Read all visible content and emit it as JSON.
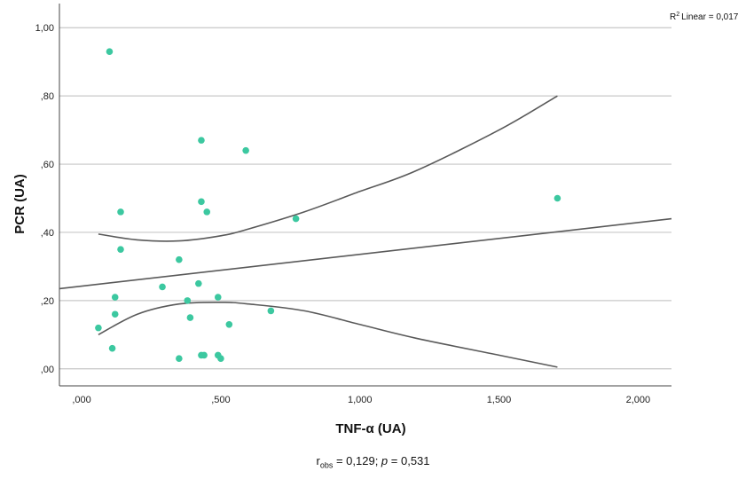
{
  "chart_data": {
    "type": "scatter",
    "xlabel": "TNF-α (UA)",
    "ylabel": "PCR (UA)",
    "xlim": [
      -0.08,
      2.12
    ],
    "ylim": [
      -0.05,
      1.05
    ],
    "x_ticks": [
      0,
      0.5,
      1.0,
      1.5,
      2.0
    ],
    "x_tick_labels": [
      ",000",
      ",500",
      "1,000",
      "1,500",
      "2,000"
    ],
    "y_ticks": [
      0,
      0.2,
      0.4,
      0.6,
      0.8,
      1.0
    ],
    "y_tick_labels": [
      ",00",
      ",20",
      ",40",
      ",60",
      ",80",
      "1,00"
    ],
    "grid": "horizontal",
    "points": [
      {
        "x": 0.1,
        "y": 0.93
      },
      {
        "x": 0.43,
        "y": 0.67
      },
      {
        "x": 0.59,
        "y": 0.64
      },
      {
        "x": 1.71,
        "y": 0.5
      },
      {
        "x": 0.43,
        "y": 0.49
      },
      {
        "x": 0.14,
        "y": 0.46
      },
      {
        "x": 0.45,
        "y": 0.46
      },
      {
        "x": 0.77,
        "y": 0.44
      },
      {
        "x": 0.14,
        "y": 0.35
      },
      {
        "x": 0.35,
        "y": 0.32
      },
      {
        "x": 0.29,
        "y": 0.24
      },
      {
        "x": 0.42,
        "y": 0.25
      },
      {
        "x": 0.12,
        "y": 0.21
      },
      {
        "x": 0.49,
        "y": 0.21
      },
      {
        "x": 0.38,
        "y": 0.2
      },
      {
        "x": 0.68,
        "y": 0.17
      },
      {
        "x": 0.12,
        "y": 0.16
      },
      {
        "x": 0.39,
        "y": 0.15
      },
      {
        "x": 0.53,
        "y": 0.13
      },
      {
        "x": 0.06,
        "y": 0.12
      },
      {
        "x": 0.11,
        "y": 0.06
      },
      {
        "x": 0.43,
        "y": 0.04
      },
      {
        "x": 0.44,
        "y": 0.04
      },
      {
        "x": 0.49,
        "y": 0.04
      },
      {
        "x": 0.35,
        "y": 0.03
      },
      {
        "x": 0.5,
        "y": 0.03
      }
    ],
    "fit_line": {
      "x": [
        -0.08,
        2.12
      ],
      "y": [
        0.235,
        0.44
      ]
    },
    "ci_upper": {
      "x": [
        0.06,
        0.2,
        0.35,
        0.5,
        0.6,
        0.8,
        1.0,
        1.2,
        1.5,
        1.71
      ],
      "y": [
        0.395,
        0.378,
        0.375,
        0.39,
        0.41,
        0.46,
        0.52,
        0.58,
        0.7,
        0.8
      ]
    },
    "ci_lower": {
      "x": [
        0.06,
        0.2,
        0.35,
        0.5,
        0.6,
        0.8,
        1.0,
        1.2,
        1.5,
        1.71
      ],
      "y": [
        0.1,
        0.16,
        0.19,
        0.195,
        0.19,
        0.17,
        0.13,
        0.09,
        0.04,
        0.005
      ]
    },
    "r2_label": "Linear = 0,017",
    "r2_sup": "2",
    "r2_prefix": "R",
    "colors": {
      "points": "#3cc8a0",
      "lines": "#595959",
      "grid": "#c8c8c8",
      "axis": "#444444"
    }
  },
  "footnote": {
    "r_symbol": "r",
    "r_sub": "obs",
    "r_value": " = 0,129; ",
    "p_symbol": "p",
    "p_value": " = 0,531"
  }
}
